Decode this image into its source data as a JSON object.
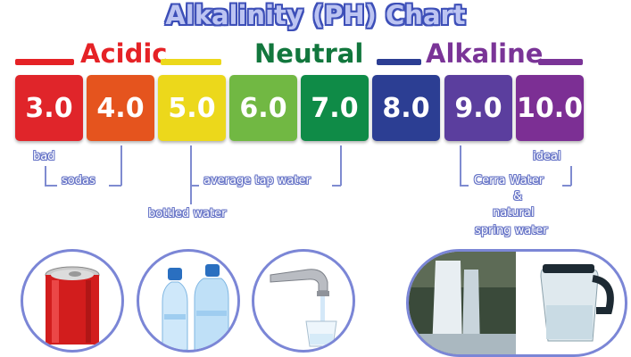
{
  "title": "Alkalinity (PH) Chart",
  "categories": {
    "acidic": {
      "label": "Acidic",
      "color": "#e52226"
    },
    "neutral": {
      "label": "Neutral",
      "color": "#12773d"
    },
    "alkaline": {
      "label": "Alkaline",
      "color": "#7a3497"
    }
  },
  "scale": [
    {
      "value": "3.0",
      "color": "#e0252a"
    },
    {
      "value": "4.0",
      "color": "#e5541e"
    },
    {
      "value": "5.0",
      "color": "#ecd81b"
    },
    {
      "value": "6.0",
      "color": "#71b843"
    },
    {
      "value": "7.0",
      "color": "#0f8b47"
    },
    {
      "value": "8.0",
      "color": "#2c3e93"
    },
    {
      "value": "9.0",
      "color": "#5b3e9e"
    },
    {
      "value": "10.0",
      "color": "#7c2f94"
    }
  ],
  "labels": {
    "bad": "bad",
    "sodas": "sodas",
    "bottled_water": "bottled water",
    "average_tap_water": "average tap water",
    "ideal": "ideal",
    "cerra_line1": "Cerra Water",
    "cerra_line2": "&",
    "cerra_line3": "natural",
    "cerra_line4": "spring water"
  },
  "images": [
    "soda-can",
    "water-bottles",
    "faucet-glass",
    "waterfall",
    "water-pitcher"
  ]
}
